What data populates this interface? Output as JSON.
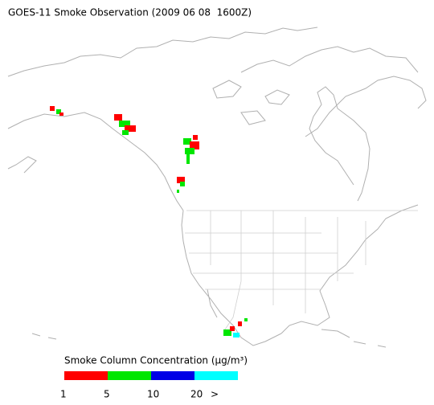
{
  "title": "GOES-11 Smoke Observation (2009 06 08  1600Z)",
  "legend": {
    "title": "Smoke Column Concentration (μg/m³)",
    "colors": [
      "#ff0000",
      "#00e600",
      "#0000e6",
      "#00ffff"
    ],
    "labels": [
      "1",
      "5",
      "10",
      "20",
      ">"
    ]
  }
}
